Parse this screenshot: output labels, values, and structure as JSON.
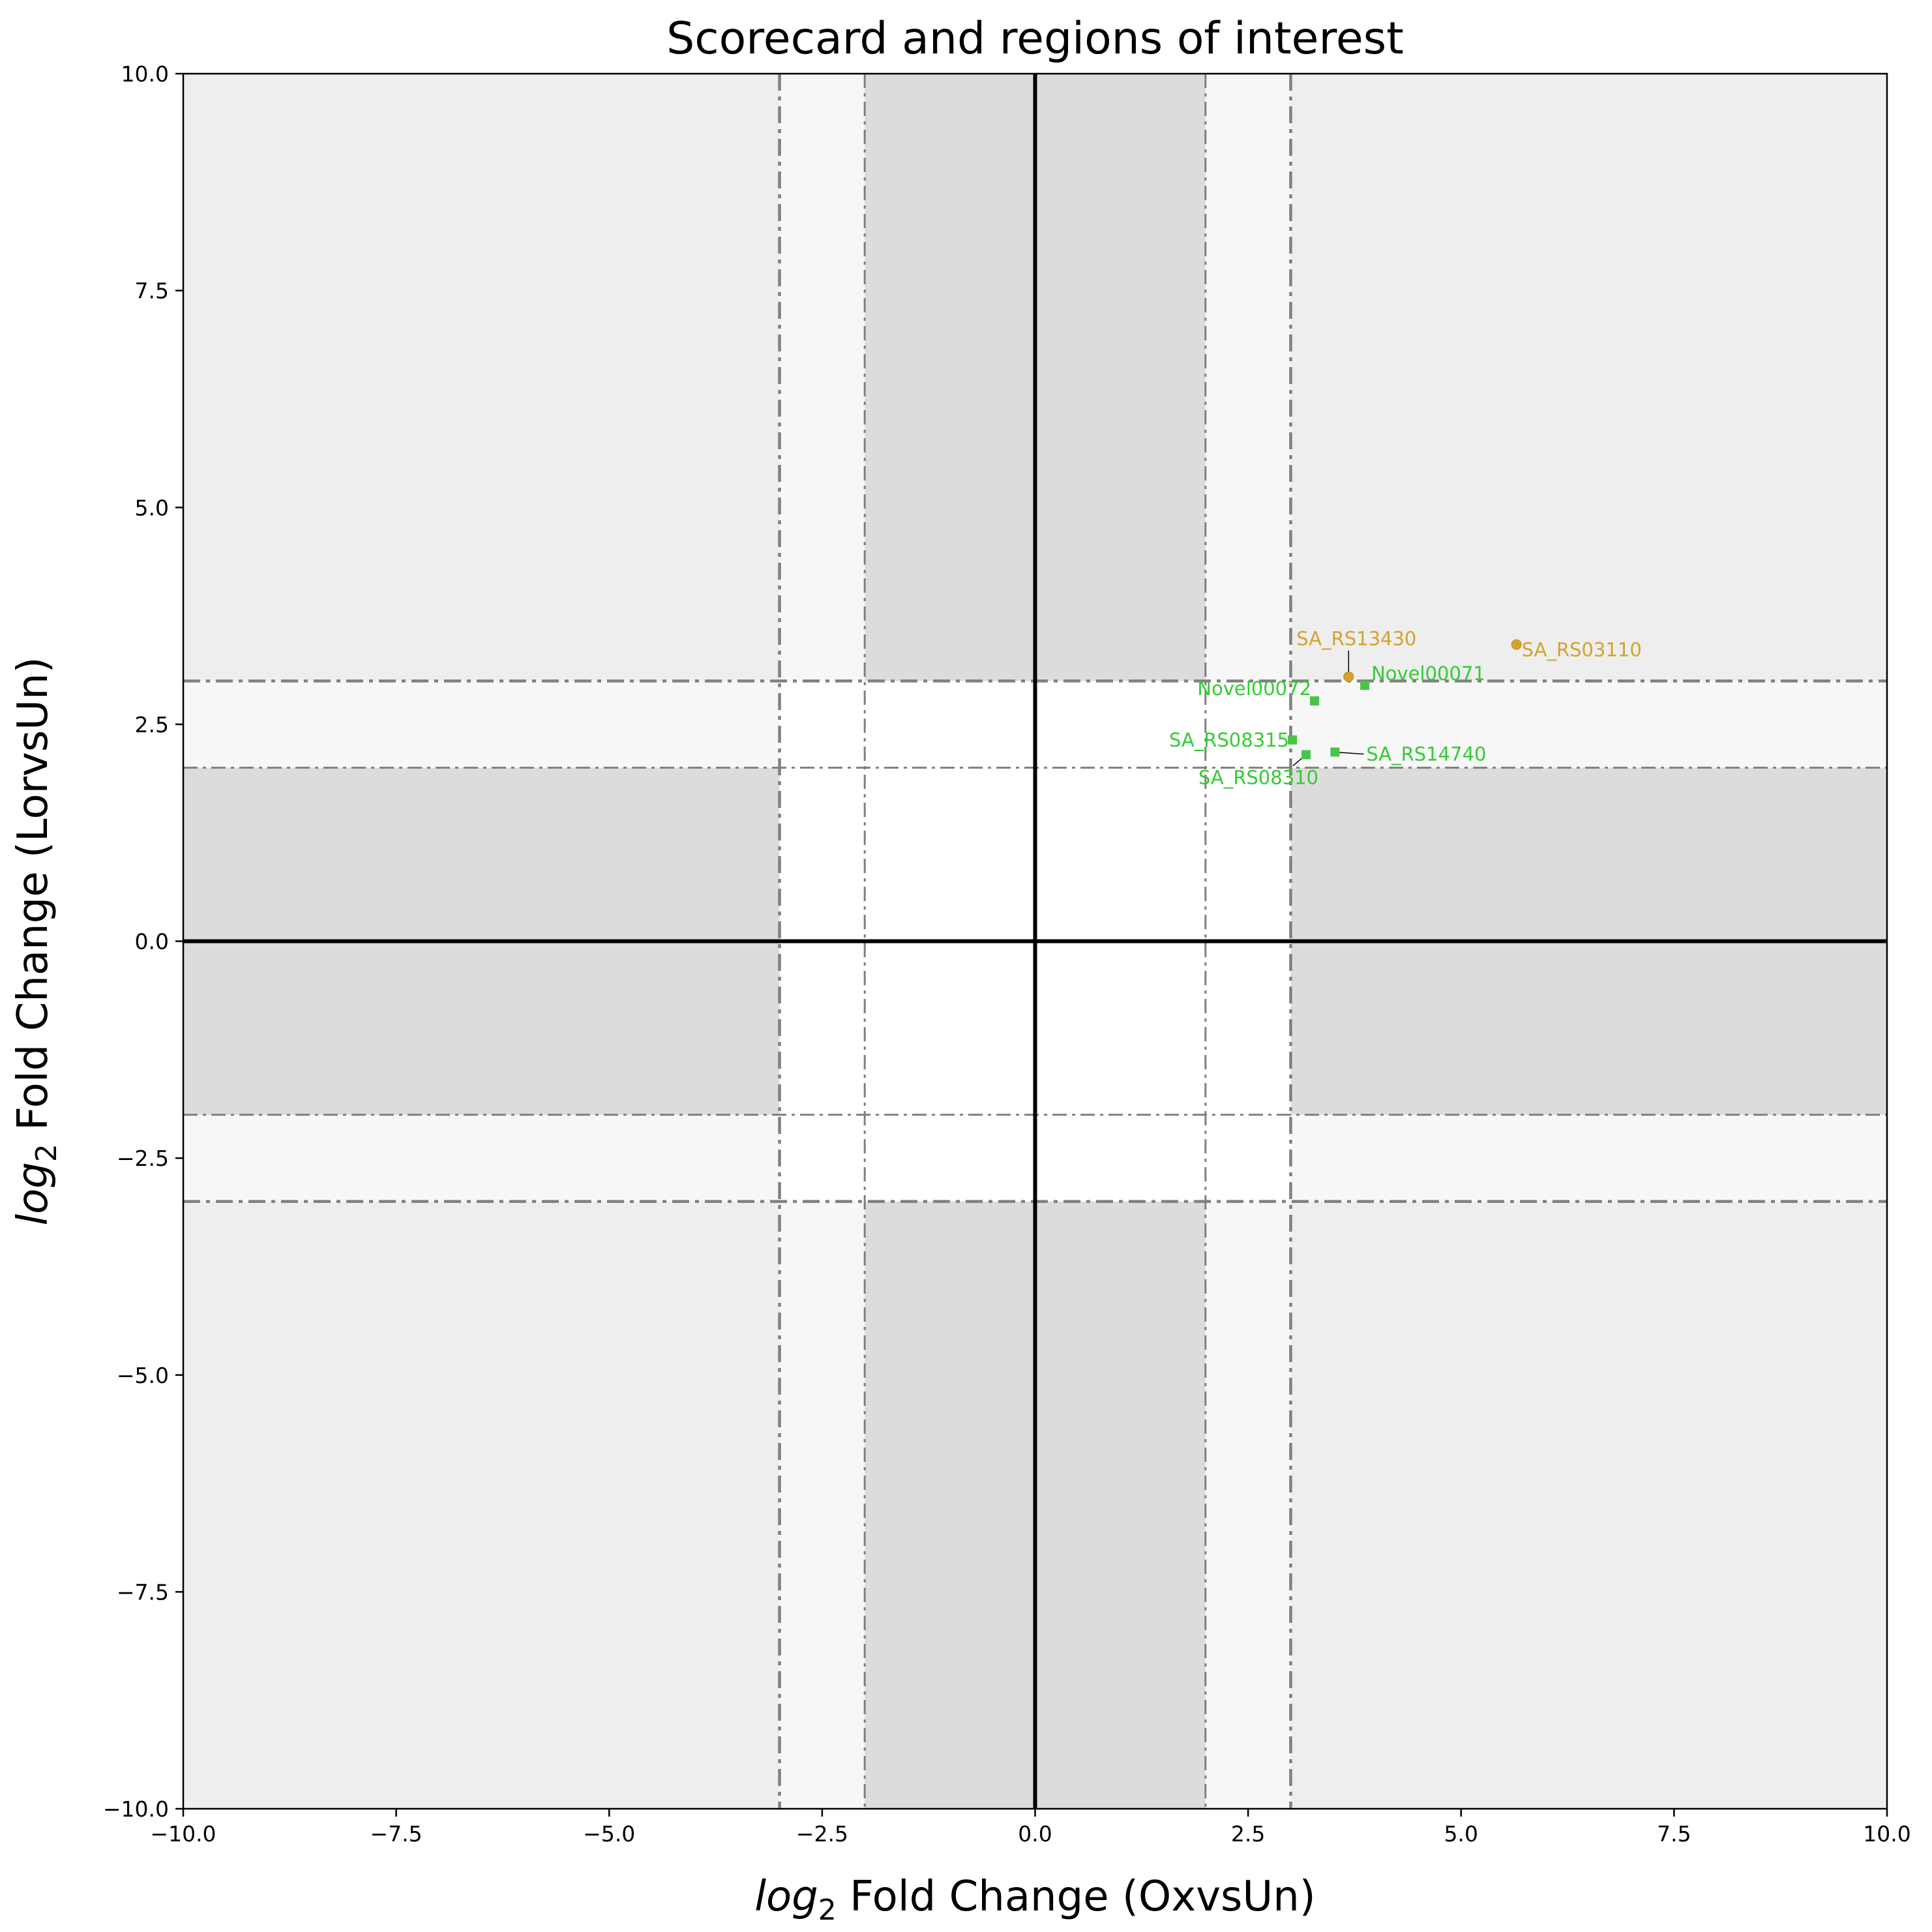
{
  "chart_data": {
    "type": "scatter",
    "title": "Scorecard and regions of interest",
    "xlabel": {
      "pre": "log",
      "sub": "2",
      "post": " Fold Change (OxvsUn)"
    },
    "ylabel": {
      "pre": "log",
      "sub": "2",
      "post": " Fold Change (LorvsUn)"
    },
    "xlim": [
      -10,
      10
    ],
    "ylim": [
      -10,
      10
    ],
    "xticks": [
      -10,
      -7.5,
      -5,
      -2.5,
      0,
      2.5,
      5,
      7.5,
      10
    ],
    "yticks": [
      -10,
      -7.5,
      -5,
      -2.5,
      0,
      2.5,
      5,
      7.5,
      10
    ],
    "xtick_labels": [
      "−10.0",
      "−7.5",
      "−5.0",
      "−2.5",
      "0.0",
      "2.5",
      "5.0",
      "7.5",
      "10.0"
    ],
    "ytick_labels": [
      "−10.0",
      "−7.5",
      "−5.0",
      "−2.5",
      "0.0",
      "2.5",
      "5.0",
      "7.5",
      "10.0"
    ],
    "grid": false,
    "legend": "none",
    "thresholds": {
      "inner": 2,
      "outer": 3
    },
    "region_colors": {
      "light": "#eeeeee",
      "lighter": "#f7f7f7",
      "medium": "#dcdcdc",
      "white": "#ffffff"
    },
    "line_colors": {
      "threshold": "#808080",
      "axis": "#000000"
    },
    "series": [
      {
        "color": "#d4a32b",
        "marker": "circle",
        "points": [
          {
            "label": "SA_RS03110",
            "x": 5.65,
            "y": 3.42
          },
          {
            "label": "SA_RS13430",
            "x": 3.68,
            "y": 3.05
          }
        ]
      },
      {
        "color": "#49c449",
        "text_color": "#33cc33",
        "marker": "square",
        "points": [
          {
            "label": "Novel00071",
            "x": 3.87,
            "y": 2.95
          },
          {
            "label": "Novel00072",
            "x": 3.28,
            "y": 2.77
          },
          {
            "label": "SA_RS08315",
            "x": 3.02,
            "y": 2.32
          },
          {
            "label": "SA_RS08310",
            "x": 3.18,
            "y": 2.15
          },
          {
            "label": "SA_RS14740",
            "x": 3.52,
            "y": 2.18
          }
        ]
      }
    ]
  }
}
